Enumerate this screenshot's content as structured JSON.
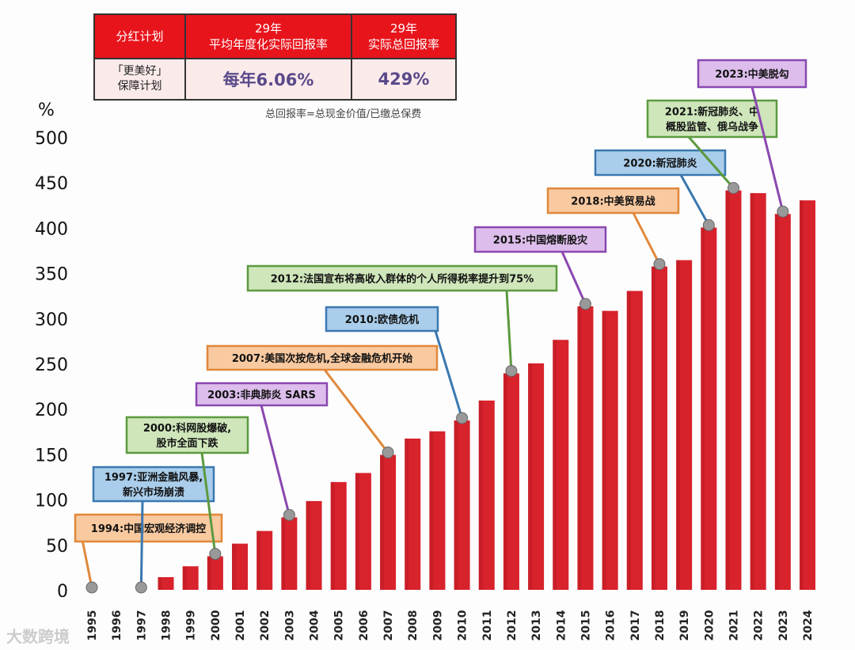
{
  "table": {
    "headers": [
      "分红计划",
      "29年\n平均年度化实际回报率",
      "29年\n实际总回报率"
    ],
    "row": {
      "plan_line1": "「更美好」",
      "plan_line2": "保障计划",
      "annual": "每年6.06%",
      "total": "429%"
    },
    "note": "总回报率=总现金价值/已缴总保费"
  },
  "watermark": "大数跨境",
  "chart_data": {
    "type": "bar",
    "ylabel": "%",
    "ylim": [
      0,
      500
    ],
    "yticks": [
      0,
      50,
      100,
      150,
      200,
      250,
      300,
      350,
      400,
      450,
      500
    ],
    "categories": [
      "1995",
      "1996",
      "1997",
      "1998",
      "1999",
      "2000",
      "2001",
      "2002",
      "2003",
      "2004",
      "2005",
      "2006",
      "2007",
      "2008",
      "2009",
      "2010",
      "2011",
      "2012",
      "2013",
      "2014",
      "2015",
      "2016",
      "2017",
      "2018",
      "2019",
      "2020",
      "2021",
      "2022",
      "2023",
      "2024"
    ],
    "values": [
      0,
      0,
      0,
      14,
      26,
      37,
      51,
      65,
      80,
      98,
      119,
      129,
      149,
      167,
      175,
      187,
      209,
      239,
      250,
      276,
      313,
      308,
      330,
      357,
      364,
      400,
      441,
      438,
      415,
      430
    ],
    "bar_color": "#d8222c",
    "annotations": [
      {
        "year": "1995",
        "text": [
          "1994:中国宏观经济调控"
        ],
        "style": "orange"
      },
      {
        "year": "1997",
        "text": [
          "1997:亚洲金融风暴,",
          "新兴市场崩溃"
        ],
        "style": "blue"
      },
      {
        "year": "2000",
        "text": [
          "2000:科网股爆破,",
          "股市全面下跌"
        ],
        "style": "green"
      },
      {
        "year": "2003",
        "text": [
          "2003:非典肺炎 SARS"
        ],
        "style": "purple"
      },
      {
        "year": "2007",
        "text": [
          "2007:美国次按危机,全球金融危机开始"
        ],
        "style": "orange"
      },
      {
        "year": "2010",
        "text": [
          "2010:欧债危机"
        ],
        "style": "blue"
      },
      {
        "year": "2012",
        "text": [
          "2012:法国宣布将高收入群体的个人所得税率提升到75%"
        ],
        "style": "green"
      },
      {
        "year": "2015",
        "text": [
          "2015:中国熔断股灾"
        ],
        "style": "purple"
      },
      {
        "year": "2018",
        "text": [
          "2018:中美贸易战"
        ],
        "style": "orange"
      },
      {
        "year": "2020",
        "text": [
          "2020:新冠肺炎"
        ],
        "style": "blue"
      },
      {
        "year": "2021",
        "text": [
          "2021:新冠肺炎、中",
          "概股监管、俄乌战争"
        ],
        "style": "green"
      },
      {
        "year": "2023",
        "text": [
          "2023:中美脱勾"
        ],
        "style": "purple"
      }
    ],
    "styles": {
      "orange": {
        "fill": "#f9c9a0",
        "stroke": "#e0883a"
      },
      "blue": {
        "fill": "#a9cdea",
        "stroke": "#3a78b0"
      },
      "green": {
        "fill": "#cfe6bb",
        "stroke": "#5c9a3e"
      },
      "purple": {
        "fill": "#dcbdeb",
        "stroke": "#8a48b0"
      }
    }
  }
}
